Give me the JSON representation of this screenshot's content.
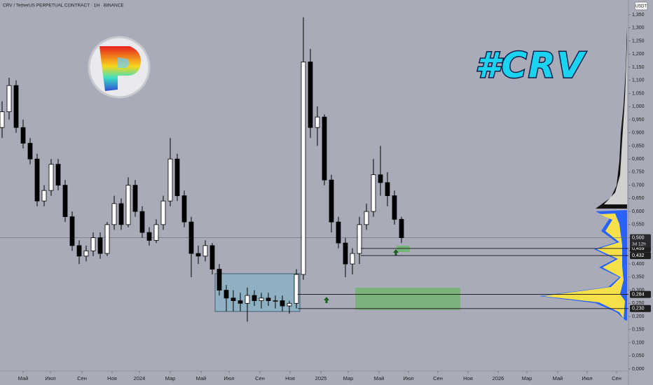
{
  "chart_data": {
    "type": "candlestick",
    "title": "CRV / TetherUS PERPETUAL CONTRACT · 1H · BINANCE",
    "currency": "USDT",
    "annotation": "#CRV",
    "open": [
      0.92,
      0.98,
      1.08,
      0.92,
      0.86,
      0.8,
      0.64,
      0.68,
      0.78,
      0.7,
      0.58,
      0.47,
      0.43,
      0.45,
      0.5,
      0.44,
      0.55,
      0.63,
      0.55,
      0.7,
      0.6,
      0.52,
      0.49,
      0.55,
      0.64,
      0.8,
      0.66,
      0.56,
      0.44,
      0.43,
      0.47,
      0.38,
      0.3,
      0.27,
      0.26,
      0.25,
      0.28,
      0.26,
      0.27,
      0.26,
      0.26,
      0.24,
      0.25,
      0.36,
      1.17,
      0.92,
      0.96,
      0.72,
      0.56,
      0.48,
      0.4,
      0.44,
      0.55,
      0.6,
      0.74,
      0.71,
      0.66,
      0.57
    ],
    "high": [
      1.02,
      1.11,
      1.1,
      0.95,
      0.88,
      0.82,
      0.7,
      0.8,
      0.8,
      0.72,
      0.6,
      0.49,
      0.47,
      0.52,
      0.52,
      0.56,
      0.66,
      0.65,
      0.73,
      0.72,
      0.62,
      0.54,
      0.57,
      0.66,
      0.88,
      0.82,
      0.68,
      0.58,
      0.47,
      0.49,
      0.48,
      0.4,
      0.32,
      0.3,
      0.29,
      0.31,
      0.3,
      0.29,
      0.29,
      0.28,
      0.28,
      0.26,
      0.38,
      1.34,
      1.22,
      1.0,
      0.97,
      0.74,
      0.58,
      0.5,
      0.46,
      0.58,
      0.63,
      0.8,
      0.85,
      0.75,
      0.68,
      0.58
    ],
    "low": [
      0.88,
      0.95,
      0.9,
      0.84,
      0.78,
      0.62,
      0.62,
      0.66,
      0.68,
      0.56,
      0.45,
      0.4,
      0.41,
      0.43,
      0.42,
      0.43,
      0.53,
      0.53,
      0.54,
      0.58,
      0.5,
      0.47,
      0.48,
      0.53,
      0.62,
      0.64,
      0.54,
      0.35,
      0.4,
      0.41,
      0.36,
      0.28,
      0.22,
      0.22,
      0.22,
      0.18,
      0.24,
      0.23,
      0.24,
      0.23,
      0.22,
      0.21,
      0.23,
      0.34,
      0.88,
      0.85,
      0.7,
      0.52,
      0.46,
      0.35,
      0.36,
      0.4,
      0.53,
      0.58,
      0.66,
      0.62,
      0.55,
      0.48
    ],
    "close": [
      0.98,
      1.08,
      0.92,
      0.86,
      0.8,
      0.64,
      0.68,
      0.78,
      0.7,
      0.58,
      0.47,
      0.43,
      0.45,
      0.5,
      0.44,
      0.55,
      0.63,
      0.55,
      0.7,
      0.6,
      0.52,
      0.49,
      0.55,
      0.64,
      0.8,
      0.66,
      0.56,
      0.44,
      0.43,
      0.47,
      0.38,
      0.3,
      0.27,
      0.26,
      0.25,
      0.28,
      0.26,
      0.27,
      0.26,
      0.26,
      0.24,
      0.25,
      0.36,
      1.17,
      0.92,
      0.96,
      0.72,
      0.56,
      0.48,
      0.4,
      0.44,
      0.55,
      0.6,
      0.74,
      0.71,
      0.66,
      0.57,
      0.5
    ],
    "up_color": "#ffffff",
    "down_color": "#000000",
    "ylim": [
      -0.0613,
      1.406
    ],
    "yticks": [
      {
        "value": 0,
        "label": "0,000"
      },
      {
        "value": 0.05,
        "label": "0,050"
      },
      {
        "value": 0.1,
        "label": "0,100"
      },
      {
        "value": 0.15,
        "label": "0,150"
      },
      {
        "value": 0.2,
        "label": "0,200"
      },
      {
        "value": 0.25,
        "label": "0,250"
      },
      {
        "value": 0.3,
        "label": "0,300"
      },
      {
        "value": 0.35,
        "label": "0,350"
      },
      {
        "value": 0.4,
        "label": "0,400"
      },
      {
        "value": 0.45,
        "label": "0,450"
      },
      {
        "value": 0.5,
        "label": "0,500"
      },
      {
        "value": 0.55,
        "label": "0,550"
      },
      {
        "value": 0.6,
        "label": "0,600"
      },
      {
        "value": 0.65,
        "label": "0,650"
      },
      {
        "value": 0.7,
        "label": "0,700"
      },
      {
        "value": 0.75,
        "label": "0,750"
      },
      {
        "value": 0.8,
        "label": "0,800"
      },
      {
        "value": 0.85,
        "label": "0,850"
      },
      {
        "value": 0.9,
        "label": "0,900"
      },
      {
        "value": 0.95,
        "label": "0,950"
      },
      {
        "value": 1,
        "label": "1,000"
      },
      {
        "value": 1.05,
        "label": "1,050"
      },
      {
        "value": 1.1,
        "label": "1,100"
      },
      {
        "value": 1.15,
        "label": "1,150"
      },
      {
        "value": 1.2,
        "label": "1,200"
      },
      {
        "value": 1.25,
        "label": "1,250"
      },
      {
        "value": 1.3,
        "label": "1,300"
      },
      {
        "value": 1.35,
        "label": "1,350"
      }
    ],
    "xlim": [
      -0.3,
      89.4
    ],
    "xticks": [
      {
        "value": 3,
        "label": "Май"
      },
      {
        "value": 6.9,
        "label": "Июл"
      },
      {
        "value": 11.4,
        "label": "Сен"
      },
      {
        "value": 15.7,
        "label": "Ноя"
      },
      {
        "value": 19.6,
        "label": "2024"
      },
      {
        "value": 24,
        "label": "Мар"
      },
      {
        "value": 28.4,
        "label": "Май"
      },
      {
        "value": 32.4,
        "label": "Июл"
      },
      {
        "value": 36.8,
        "label": "Сен"
      },
      {
        "value": 41.1,
        "label": "Ноя"
      },
      {
        "value": 45.5,
        "label": "2025"
      },
      {
        "value": 49.4,
        "label": "Мар"
      },
      {
        "value": 53.8,
        "label": "Май"
      },
      {
        "value": 58,
        "label": "Июл"
      },
      {
        "value": 62.2,
        "label": "Сен"
      },
      {
        "value": 66.5,
        "label": "Ноя"
      },
      {
        "value": 70.8,
        "label": "2026"
      },
      {
        "value": 74.9,
        "label": "Мар"
      },
      {
        "value": 79.3,
        "label": "Май"
      },
      {
        "value": 83.5,
        "label": "Июл"
      },
      {
        "value": 87.7,
        "label": "Сен"
      }
    ],
    "current_price": {
      "value": 0.5,
      "label": "0,500"
    },
    "countdown": "3d 12h",
    "levels": [
      {
        "value": 0.459,
        "label": "0,459"
      },
      {
        "value": 0.432,
        "label": "0,432"
      },
      {
        "value": 0.284,
        "label": "0,284"
      },
      {
        "value": 0.23,
        "label": "0,230"
      }
    ]
  }
}
